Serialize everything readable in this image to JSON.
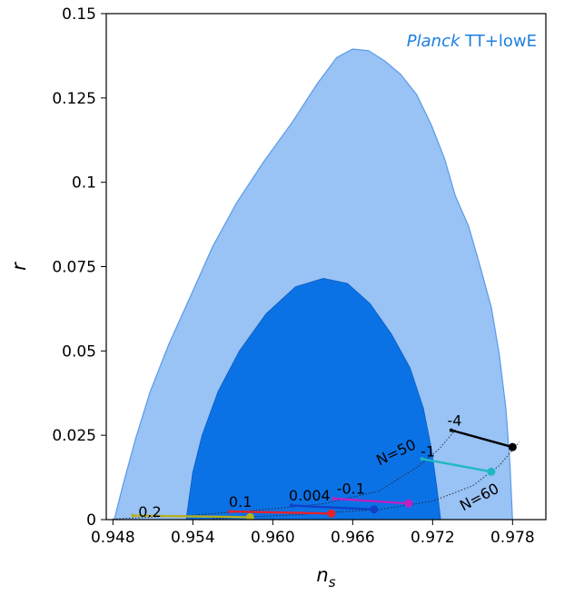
{
  "chart_data": {
    "type": "scatter",
    "title": "",
    "xlabel": "n",
    "xlabel_sub": "s",
    "ylabel": "r",
    "xlim": [
      0.9475,
      0.9805
    ],
    "ylim": [
      0,
      0.15
    ],
    "xticks": [
      0.948,
      0.954,
      0.96,
      0.966,
      0.972,
      0.978
    ],
    "xtick_labels": [
      "0.948",
      "0.954",
      "0.960",
      "0.966",
      "0.972",
      "0.978"
    ],
    "yticks": [
      0,
      0.025,
      0.05,
      0.075,
      0.1,
      0.125,
      0.15
    ],
    "ytick_labels": [
      "0",
      "0.025",
      "0.05",
      "0.075",
      "0.1",
      "0.125",
      "0.15"
    ],
    "legend": {
      "italic": "Planck",
      "rest": " TT+lowE",
      "color": "#1e7fe0",
      "placement": "top-right"
    },
    "colors": {
      "outer": "#99c2f5",
      "outer_edge": "#5a9be8",
      "inner": "#0b72e6",
      "inner_edge": "#0a62c8"
    },
    "contour_outer": [
      [
        0.9481,
        0
      ],
      [
        0.9488,
        0.011
      ],
      [
        0.9497,
        0.024
      ],
      [
        0.9508,
        0.038
      ],
      [
        0.9522,
        0.052
      ],
      [
        0.9538,
        0.066
      ],
      [
        0.9555,
        0.081
      ],
      [
        0.9573,
        0.094
      ],
      [
        0.9593,
        0.106
      ],
      [
        0.9615,
        0.118
      ],
      [
        0.9633,
        0.129
      ],
      [
        0.9648,
        0.137
      ],
      [
        0.966,
        0.1395
      ],
      [
        0.9672,
        0.139
      ],
      [
        0.9684,
        0.136
      ],
      [
        0.9696,
        0.132
      ],
      [
        0.9708,
        0.126
      ],
      [
        0.9719,
        0.117
      ],
      [
        0.9729,
        0.107
      ],
      [
        0.9737,
        0.096
      ],
      [
        0.9747,
        0.087
      ],
      [
        0.9755,
        0.076
      ],
      [
        0.9764,
        0.063
      ],
      [
        0.977,
        0.049
      ],
      [
        0.9775,
        0.033
      ],
      [
        0.9778,
        0.017
      ],
      [
        0.978,
        0
      ]
    ],
    "contour_inner": [
      [
        0.9535,
        0
      ],
      [
        0.954,
        0.014
      ],
      [
        0.9547,
        0.025
      ],
      [
        0.9559,
        0.038
      ],
      [
        0.9575,
        0.05
      ],
      [
        0.9595,
        0.061
      ],
      [
        0.9617,
        0.069
      ],
      [
        0.9638,
        0.0715
      ],
      [
        0.9656,
        0.07
      ],
      [
        0.9673,
        0.064
      ],
      [
        0.9689,
        0.055
      ],
      [
        0.9703,
        0.045
      ],
      [
        0.9713,
        0.033
      ],
      [
        0.9719,
        0.021
      ],
      [
        0.9723,
        0.01
      ],
      [
        0.9726,
        0
      ]
    ],
    "efold_curves": [
      {
        "label": "N=50",
        "points": [
          [
            0.948,
            0.0002
          ],
          [
            0.954,
            0.0013
          ],
          [
            0.96,
            0.0032
          ],
          [
            0.964,
            0.0048
          ],
          [
            0.968,
            0.0085
          ],
          [
            0.971,
            0.016
          ],
          [
            0.9725,
            0.021
          ],
          [
            0.9738,
            0.027
          ]
        ]
      },
      {
        "label": "N=60",
        "points": [
          [
            0.9555,
            0.0003
          ],
          [
            0.962,
            0.0015
          ],
          [
            0.968,
            0.003
          ],
          [
            0.972,
            0.0055
          ],
          [
            0.975,
            0.01
          ],
          [
            0.977,
            0.016
          ],
          [
            0.9785,
            0.023
          ]
        ]
      }
    ],
    "series": [
      {
        "name": "0.2",
        "color": "#b5b020",
        "x": [
          0.9495,
          0.9583
        ],
        "y": [
          0.0012,
          0.0007
        ]
      },
      {
        "name": "0.1",
        "color": "#e8202a",
        "x": [
          0.9568,
          0.9644
        ],
        "y": [
          0.0024,
          0.0018
        ]
      },
      {
        "name": "0.004",
        "color": "#1040c8",
        "x": [
          0.9614,
          0.9676
        ],
        "y": [
          0.0042,
          0.003
        ]
      },
      {
        "name": "-0.1",
        "color": "#c020c0",
        "x": [
          0.9646,
          0.9702
        ],
        "y": [
          0.0062,
          0.0048
        ]
      },
      {
        "name": "-1",
        "color": "#20b8c0",
        "x": [
          0.9712,
          0.9764
        ],
        "y": [
          0.018,
          0.0142
        ]
      },
      {
        "name": "-4",
        "color": "#000000",
        "x": [
          0.9734,
          0.978
        ],
        "y": [
          0.0265,
          0.0215
        ]
      }
    ],
    "annotations": [
      {
        "text": "0.2",
        "x": 0.9499,
        "y": 0.0008
      },
      {
        "text": "0.1",
        "x": 0.9567,
        "y": 0.0038
      },
      {
        "text": "0.004",
        "x": 0.9612,
        "y": 0.0057
      },
      {
        "text": "-0.1",
        "x": 0.9648,
        "y": 0.0077
      },
      {
        "text": "-1",
        "x": 0.9711,
        "y": 0.0187
      },
      {
        "text": "-4",
        "x": 0.9731,
        "y": 0.0279
      }
    ],
    "efold_labels": [
      {
        "text": "N=50",
        "x": 0.968,
        "y": 0.016,
        "angle": -25
      },
      {
        "text": "N=60",
        "x": 0.9743,
        "y": 0.0025,
        "angle": -28
      }
    ]
  }
}
